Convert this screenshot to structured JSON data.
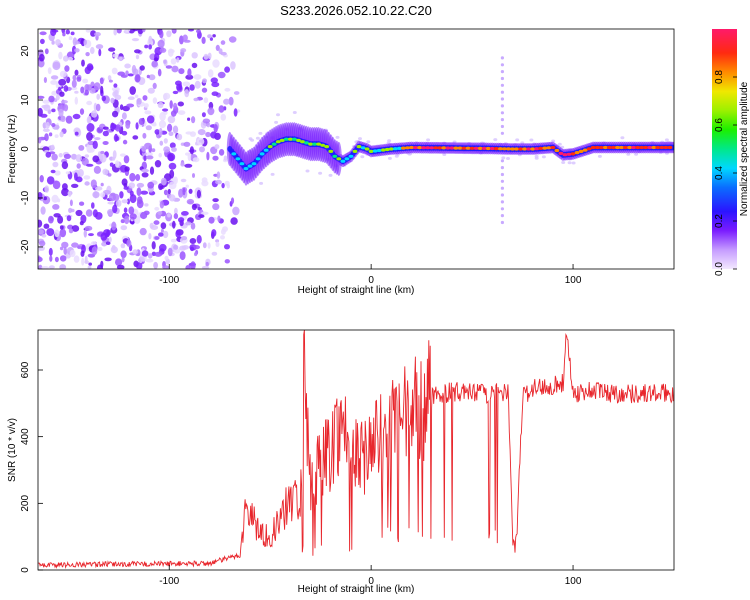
{
  "title": "S233.2026.052.10.22.C20",
  "chart_data": [
    {
      "type": "heatmap",
      "xlabel": "Height of straight line (km)",
      "ylabel": "Frequency (Hz)",
      "xlim": [
        -165,
        150
      ],
      "ylim": [
        -24.5,
        24.5
      ],
      "xticks": [
        -100,
        0,
        100
      ],
      "yticks": [
        -20,
        -10,
        0,
        10,
        20
      ],
      "grid": false,
      "track": {
        "x": [
          -70,
          -66,
          -62,
          -58,
          -54,
          -50,
          -46,
          -42,
          -38,
          -34,
          -30,
          -26,
          -22,
          -18,
          -14,
          -10,
          -6,
          -2,
          0,
          10,
          20,
          40,
          60,
          70,
          80,
          90,
          95,
          100,
          110,
          150
        ],
        "freq": [
          0,
          -2,
          -4,
          -3,
          -1,
          0.5,
          1.5,
          2,
          2,
          1.5,
          1,
          1,
          0.5,
          -1.5,
          -2.5,
          -1.5,
          0.5,
          0,
          -0.5,
          0,
          0.3,
          0.2,
          0.1,
          0,
          0,
          0.3,
          -1.2,
          -1,
          0.3,
          0.3
        ]
      },
      "colorbar": {
        "label": "Normalized spectral amplitude",
        "range": [
          0,
          1
        ],
        "ticks": [
          "0.0",
          "0.2",
          "0.4",
          "0.6",
          "0.8"
        ]
      }
    },
    {
      "type": "line",
      "xlabel": "Height of straight line (km)",
      "ylabel": "SNR (10 * v/v)",
      "xlim": [
        -165,
        150
      ],
      "ylim": [
        0,
        720
      ],
      "xticks": [
        -100,
        0,
        100
      ],
      "yticks": [
        0,
        200,
        400,
        600
      ],
      "grid": false,
      "series": [
        {
          "name": "SNR",
          "color": "#e8262c",
          "x": [
            -165,
            -80,
            -65,
            -62,
            -58,
            -55,
            -50,
            -45,
            -40,
            -35,
            -33,
            -30,
            -25,
            -20,
            -15,
            -10,
            -5,
            0,
            10,
            20,
            30,
            40,
            50,
            60,
            68,
            70,
            72,
            75,
            80,
            90,
            95,
            97,
            100,
            110,
            120,
            130,
            140,
            150
          ],
          "values": [
            15,
            20,
            45,
            190,
            150,
            110,
            100,
            150,
            210,
            230,
            600,
            250,
            330,
            360,
            450,
            360,
            330,
            380,
            420,
            470,
            520,
            535,
            530,
            530,
            530,
            80,
            80,
            520,
            545,
            555,
            560,
            720,
            530,
            540,
            530,
            530,
            530,
            530
          ]
        }
      ]
    }
  ]
}
